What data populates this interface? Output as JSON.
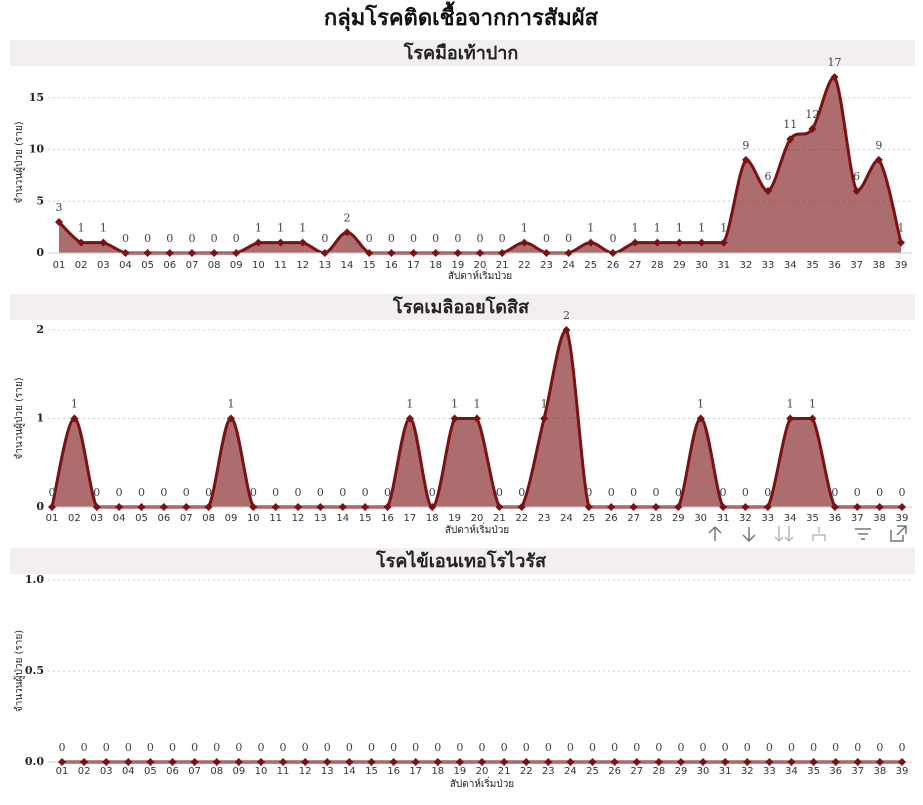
{
  "title": "กลุ่มโรคติดเชื้อจากการสัมผัส",
  "chart_data": [
    {
      "type": "area",
      "title": "โรคมือเท้าปาก",
      "x_label": "สัปดาห์เริ่มป่วย",
      "y_label": "จำนวนผู้ป่วย (ราย)",
      "categories": [
        "01",
        "02",
        "03",
        "04",
        "05",
        "06",
        "07",
        "08",
        "09",
        "10",
        "11",
        "12",
        "13",
        "14",
        "15",
        "16",
        "17",
        "18",
        "19",
        "20",
        "21",
        "22",
        "23",
        "24",
        "25",
        "26",
        "27",
        "28",
        "29",
        "30",
        "31",
        "32",
        "33",
        "34",
        "35",
        "36",
        "37",
        "38",
        "39"
      ],
      "values": [
        3,
        1,
        1,
        0,
        0,
        0,
        0,
        0,
        0,
        1,
        1,
        1,
        0,
        2,
        0,
        0,
        0,
        0,
        0,
        0,
        0,
        1,
        0,
        0,
        1,
        0,
        1,
        1,
        1,
        1,
        1,
        9,
        6,
        11,
        12,
        17,
        6,
        9,
        1
      ],
      "color": "#7b1113",
      "ylim": [
        0,
        17.5
      ],
      "yticks": [
        0,
        5,
        10,
        15
      ],
      "grid": true
    },
    {
      "type": "area",
      "title": "โรคเมลิออยโดสิส",
      "x_label": "สัปดาห์เริ่มป่วย",
      "y_label": "จำนวนผู้ป่วย (ราย)",
      "categories": [
        "01",
        "02",
        "03",
        "04",
        "05",
        "06",
        "07",
        "08",
        "09",
        "10",
        "11",
        "12",
        "13",
        "14",
        "15",
        "16",
        "17",
        "18",
        "19",
        "20",
        "21",
        "22",
        "23",
        "24",
        "25",
        "26",
        "27",
        "28",
        "29",
        "30",
        "31",
        "32",
        "33",
        "34",
        "35",
        "36",
        "37",
        "38",
        "39"
      ],
      "values": [
        0,
        1,
        0,
        0,
        0,
        0,
        0,
        0,
        1,
        0,
        0,
        0,
        0,
        0,
        0,
        0,
        1,
        0,
        1,
        1,
        0,
        0,
        1,
        2,
        0,
        0,
        0,
        0,
        0,
        1,
        0,
        0,
        0,
        1,
        1,
        0,
        0,
        0,
        0
      ],
      "color": "#7b1113",
      "ylim": [
        0,
        2
      ],
      "yticks": [
        0,
        1,
        2
      ],
      "grid": true
    },
    {
      "type": "area",
      "title": "โรคไข้เอนเทอโรไวรัส",
      "x_label": "สัปดาห์เริ่มป่วย",
      "y_label": "จำนวนผู้ป่วย (ราย)",
      "categories": [
        "01",
        "02",
        "03",
        "04",
        "05",
        "06",
        "07",
        "08",
        "09",
        "10",
        "11",
        "12",
        "13",
        "14",
        "15",
        "16",
        "17",
        "18",
        "19",
        "20",
        "21",
        "22",
        "23",
        "24",
        "25",
        "26",
        "27",
        "28",
        "29",
        "30",
        "31",
        "32",
        "33",
        "34",
        "35",
        "36",
        "37",
        "38",
        "39"
      ],
      "values": [
        0,
        0,
        0,
        0,
        0,
        0,
        0,
        0,
        0,
        0,
        0,
        0,
        0,
        0,
        0,
        0,
        0,
        0,
        0,
        0,
        0,
        0,
        0,
        0,
        0,
        0,
        0,
        0,
        0,
        0,
        0,
        0,
        0,
        0,
        0,
        0,
        0,
        0,
        0
      ],
      "color": "#7b1113",
      "ylim": [
        0,
        1
      ],
      "yticks": [
        {
          "value": 0,
          "label": "0.0"
        },
        {
          "value": 0.5,
          "label": "0.5"
        },
        {
          "value": 1,
          "label": "1.0"
        }
      ],
      "grid": true
    }
  ]
}
